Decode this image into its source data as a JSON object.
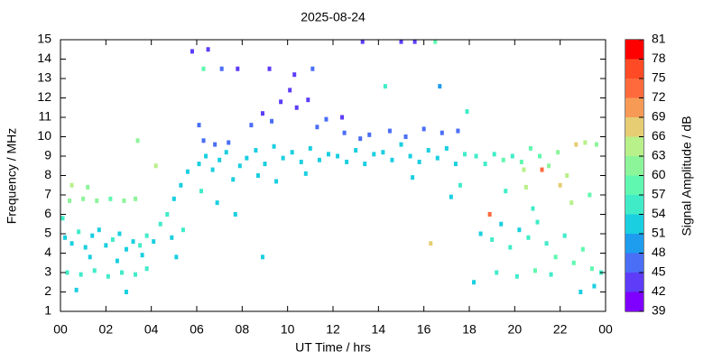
{
  "chart_data": {
    "type": "scatter",
    "title": "2025-08-24",
    "x_label": "UT Time / hrs",
    "y_label": "Frequency / MHz",
    "colorbar_label": "Signal Amplitude / dB",
    "xlim": [
      0,
      24
    ],
    "xticks": [
      {
        "value": 0,
        "label": "00"
      },
      {
        "value": 2,
        "label": "02"
      },
      {
        "value": 4,
        "label": "04"
      },
      {
        "value": 6,
        "label": "06"
      },
      {
        "value": 8,
        "label": "08"
      },
      10,
      12,
      14,
      16,
      18,
      20,
      22,
      {
        "value": 24,
        "label": "00"
      }
    ],
    "ylim": [
      1,
      15
    ],
    "yticks": [
      1,
      2,
      3,
      4,
      5,
      6,
      7,
      8,
      9,
      10,
      11,
      12,
      13,
      14,
      15
    ],
    "clim": [
      39,
      81
    ],
    "cticks": [
      39,
      42,
      45,
      48,
      51,
      54,
      57,
      60,
      63,
      66,
      69,
      72,
      75,
      78,
      81
    ],
    "colors": [
      "#7f00ff",
      "#5e3cf8",
      "#4a6ef5",
      "#1e9cee",
      "#1acfe0",
      "#40ecc8",
      "#60f8b0",
      "#8cf59a",
      "#b8f08a",
      "#e6cd74",
      "#f79a55",
      "#ff6a3d",
      "#ff4a26",
      "#ff0000"
    ],
    "x": [
      0.2,
      0.5,
      0.8,
      1.1,
      1.4,
      1.7,
      2.0,
      2.3,
      2.6,
      2.9,
      3.2,
      3.5,
      3.8,
      0.3,
      0.9,
      1.5,
      2.1,
      2.7,
      3.3,
      3.8,
      0.4,
      1.0,
      1.6,
      2.2,
      2.8,
      3.3,
      0.5,
      1.2,
      0.7,
      2.9,
      0.1,
      1.3,
      2.5,
      3.6,
      4.1,
      4.4,
      4.7,
      5.0,
      5.3,
      5.6,
      4.9,
      5.4,
      4.2,
      3.4,
      5.1,
      6.1,
      6.4,
      6.7,
      7.0,
      7.3,
      7.6,
      7.9,
      6.3,
      6.8,
      7.4,
      6.2,
      6.9,
      6.5,
      5.8,
      6.3,
      7.1,
      7.8,
      6.1,
      7.7,
      8.2,
      8.6,
      9.0,
      9.4,
      9.8,
      10.2,
      10.6,
      11.0,
      11.4,
      11.8,
      8.4,
      8.9,
      9.3,
      9.7,
      10.1,
      10.4,
      10.9,
      11.3,
      11.7,
      8.7,
      9.5,
      10.8,
      9.2,
      10.3,
      11.1,
      8.9,
      12.2,
      12.6,
      13.0,
      13.4,
      13.8,
      12.5,
      13.2,
      13.6,
      13.3,
      12.4,
      14.2,
      14.6,
      15.0,
      15.4,
      15.8,
      16.2,
      16.6,
      17.0,
      17.4,
      17.8,
      14.5,
      15.2,
      16.0,
      16.8,
      17.5,
      17.9,
      15.0,
      15.6,
      16.5,
      14.3,
      16.7,
      15.5,
      16.3,
      17.2,
      17.6,
      18.3,
      18.7,
      19.1,
      19.5,
      19.9,
      20.3,
      20.7,
      21.1,
      21.5,
      21.9,
      22.3,
      22.7,
      23.1,
      23.6,
      18.5,
      19.0,
      19.4,
      19.8,
      20.2,
      20.6,
      21.0,
      21.4,
      21.8,
      22.2,
      22.6,
      23.0,
      23.4,
      23.8,
      19.2,
      20.1,
      20.9,
      21.6,
      22.9,
      23.5,
      18.9,
      20.5,
      21.2,
      22.0,
      22.5,
      19.6,
      20.8,
      23.3,
      18.2,
      20.4
    ],
    "y": [
      4.8,
      4.5,
      5.1,
      4.3,
      4.9,
      5.2,
      4.4,
      4.7,
      5.0,
      4.2,
      4.6,
      4.4,
      4.9,
      3.0,
      2.9,
      3.1,
      2.8,
      3.0,
      2.9,
      3.2,
      6.7,
      6.8,
      6.7,
      6.8,
      6.7,
      6.8,
      7.5,
      7.4,
      2.1,
      2.0,
      5.8,
      3.8,
      3.6,
      3.9,
      4.6,
      5.5,
      6.0,
      6.8,
      7.5,
      8.2,
      4.8,
      5.2,
      8.5,
      9.8,
      3.8,
      8.6,
      9.0,
      8.3,
      8.8,
      9.2,
      7.8,
      8.5,
      9.8,
      9.6,
      9.7,
      7.2,
      6.6,
      14.5,
      14.4,
      13.5,
      13.5,
      13.5,
      10.6,
      6.0,
      8.9,
      9.3,
      8.6,
      9.5,
      8.9,
      9.2,
      8.7,
      9.4,
      8.8,
      9.1,
      10.6,
      11.2,
      10.8,
      11.8,
      12.4,
      11.5,
      11.9,
      10.5,
      10.9,
      8.0,
      7.7,
      8.1,
      13.5,
      13.2,
      13.5,
      3.8,
      9.0,
      8.7,
      9.3,
      8.6,
      9.1,
      10.2,
      9.9,
      10.1,
      14.9,
      11.0,
      9.2,
      8.8,
      9.6,
      9.0,
      8.7,
      9.3,
      8.9,
      9.4,
      8.6,
      9.1,
      10.3,
      10.0,
      10.4,
      10.2,
      10.3,
      11.3,
      14.9,
      14.9,
      14.9,
      12.6,
      12.6,
      7.9,
      4.5,
      6.9,
      7.5,
      9.0,
      8.6,
      9.1,
      8.8,
      9.0,
      8.7,
      9.4,
      9.0,
      8.5,
      9.2,
      8.0,
      9.6,
      9.7,
      9.6,
      5.0,
      4.7,
      5.5,
      4.3,
      5.2,
      4.8,
      5.6,
      4.5,
      3.8,
      4.9,
      3.5,
      4.2,
      3.2,
      3.0,
      3.0,
      2.8,
      3.1,
      2.9,
      2.0,
      2.3,
      6.0,
      7.4,
      8.3,
      7.5,
      6.6,
      7.2,
      6.3,
      7.0,
      2.5,
      8.3
    ],
    "values": [
      53,
      52,
      54,
      51,
      53,
      52,
      53,
      54,
      52,
      51,
      53,
      54,
      55,
      55,
      56,
      54,
      55,
      56,
      55,
      54,
      60,
      61,
      60,
      59,
      60,
      61,
      63,
      62,
      52,
      51,
      55,
      53,
      52,
      53,
      53,
      54,
      55,
      53,
      52,
      53,
      52,
      54,
      64,
      61,
      52,
      52,
      53,
      52,
      51,
      53,
      52,
      53,
      45,
      46,
      47,
      54,
      53,
      43,
      44,
      58,
      45,
      43,
      47,
      52,
      51,
      52,
      51,
      52,
      53,
      52,
      51,
      52,
      51,
      52,
      46,
      44,
      45,
      43,
      42,
      43,
      44,
      45,
      46,
      52,
      53,
      52,
      44,
      43,
      45,
      52,
      52,
      51,
      52,
      51,
      52,
      46,
      47,
      45,
      42,
      43,
      52,
      51,
      52,
      51,
      52,
      51,
      52,
      53,
      52,
      55,
      46,
      47,
      45,
      46,
      47,
      55,
      43,
      44,
      58,
      56,
      48,
      51,
      68,
      52,
      54,
      55,
      56,
      54,
      57,
      56,
      58,
      57,
      58,
      60,
      61,
      63,
      66,
      64,
      62,
      53,
      54,
      52,
      55,
      53,
      54,
      56,
      55,
      57,
      56,
      58,
      57,
      59,
      56,
      55,
      56,
      57,
      55,
      52,
      53,
      72,
      63,
      74,
      66,
      63,
      56,
      55,
      57,
      52,
      64
    ]
  }
}
